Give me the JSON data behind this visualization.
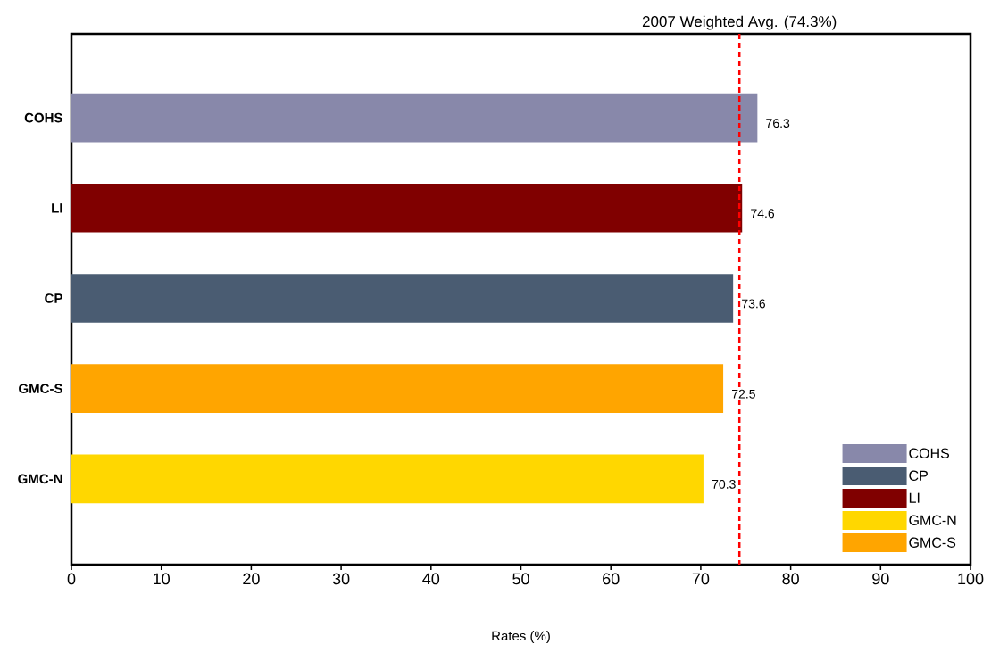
{
  "chart_data": {
    "type": "bar",
    "orientation": "horizontal",
    "stacked": true,
    "categories": [
      "COHS",
      "LI",
      "CP",
      "GMC-S",
      "GMC-N"
    ],
    "series": [
      {
        "name": "COHS",
        "color": "#8888aa",
        "values": [
          76.3,
          null,
          null,
          null,
          null
        ]
      },
      {
        "name": "CP",
        "color": "#4a5c72",
        "values": [
          null,
          null,
          73.6,
          null,
          null
        ]
      },
      {
        "name": "LI",
        "color": "#800000",
        "values": [
          null,
          74.6,
          null,
          null,
          null
        ]
      },
      {
        "name": "GMC-N",
        "color": "#ffd700",
        "values": [
          null,
          null,
          null,
          null,
          70.3
        ]
      },
      {
        "name": "GMC-S",
        "color": "#ffa500",
        "values": [
          null,
          null,
          null,
          72.5,
          null
        ]
      }
    ],
    "xlabel": "Rates (%)",
    "xlim": [
      0,
      100
    ],
    "xticks": [
      0,
      10,
      20,
      30,
      40,
      50,
      60,
      70,
      80,
      90,
      100
    ],
    "ref_lines": [
      {
        "axis": "x",
        "value": 74.3,
        "label": "2007 Weighted Avg. (74.3%)",
        "color": "#ff0000",
        "line_style": "dashed"
      }
    ],
    "data_labels": true,
    "legend": "bottom right"
  }
}
